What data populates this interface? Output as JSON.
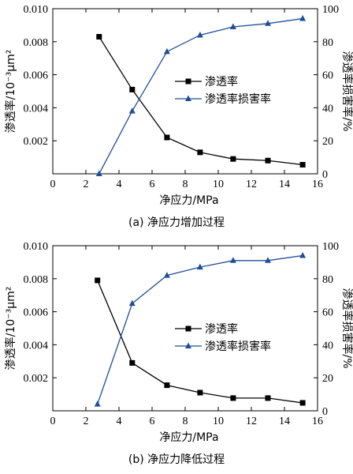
{
  "colors": {
    "permeability": "#000000",
    "damage": "#1f4e99",
    "axis": "#000000"
  },
  "legend": {
    "placement": "right-center"
  },
  "chart_data": [
    {
      "type": "line",
      "caption": "(a)  净应力增加过程",
      "xlabel": "净应力/MPa",
      "ylabel_left": "渗透率/10⁻³μm²",
      "ylabel_right": "渗透率损害率/%",
      "xlim": [
        0,
        16
      ],
      "ylim_left": [
        0,
        0.01
      ],
      "ylim_right": [
        0,
        100
      ],
      "x_ticks": [
        "0",
        "2",
        "4",
        "6",
        "8",
        "10",
        "12",
        "14",
        "16"
      ],
      "y_left_ticks": [
        "0.002",
        "0.004",
        "0.006",
        "0.008",
        "0.010"
      ],
      "y_right_ticks": [
        "0",
        "20",
        "40",
        "60",
        "80",
        "100"
      ],
      "series": [
        {
          "name": "渗透率",
          "axis": "left",
          "marker": "square",
          "x": [
            2.8,
            4.8,
            6.9,
            8.9,
            10.9,
            13.0,
            15.1
          ],
          "y": [
            0.0083,
            0.0051,
            0.0022,
            0.0013,
            0.0009,
            0.0008,
            0.00055
          ]
        },
        {
          "name": "渗透率损害率",
          "axis": "right",
          "marker": "triangle",
          "x": [
            2.8,
            4.8,
            6.9,
            8.9,
            10.9,
            13.0,
            15.1
          ],
          "y": [
            0,
            38,
            74,
            84,
            89,
            91,
            94
          ]
        }
      ]
    },
    {
      "type": "line",
      "caption": "(b)  净应力降低过程",
      "xlabel": "净应力/MPa",
      "ylabel_left": "渗透率/10⁻³μm²",
      "ylabel_right": "渗透率损害率/%",
      "xlim": [
        0,
        16
      ],
      "ylim_left": [
        0,
        0.01
      ],
      "ylim_right": [
        0,
        100
      ],
      "x_ticks": [
        "0",
        "2",
        "4",
        "6",
        "8",
        "10",
        "12",
        "14",
        "16"
      ],
      "y_left_ticks": [
        "0.002",
        "0.004",
        "0.006",
        "0.008",
        "0.010"
      ],
      "y_right_ticks": [
        "0",
        "20",
        "40",
        "60",
        "80",
        "100"
      ],
      "series": [
        {
          "name": "渗透率",
          "axis": "left",
          "marker": "square",
          "x": [
            2.7,
            4.8,
            6.9,
            8.9,
            10.9,
            13.0,
            15.1
          ],
          "y": [
            0.0079,
            0.0029,
            0.00155,
            0.0011,
            0.00077,
            0.00077,
            0.00048
          ]
        },
        {
          "name": "渗透率损害率",
          "axis": "right",
          "marker": "triangle",
          "x": [
            2.7,
            4.8,
            6.9,
            8.9,
            10.9,
            13.0,
            15.1
          ],
          "y": [
            4,
            65,
            82,
            87,
            91,
            91,
            94
          ]
        }
      ]
    }
  ]
}
